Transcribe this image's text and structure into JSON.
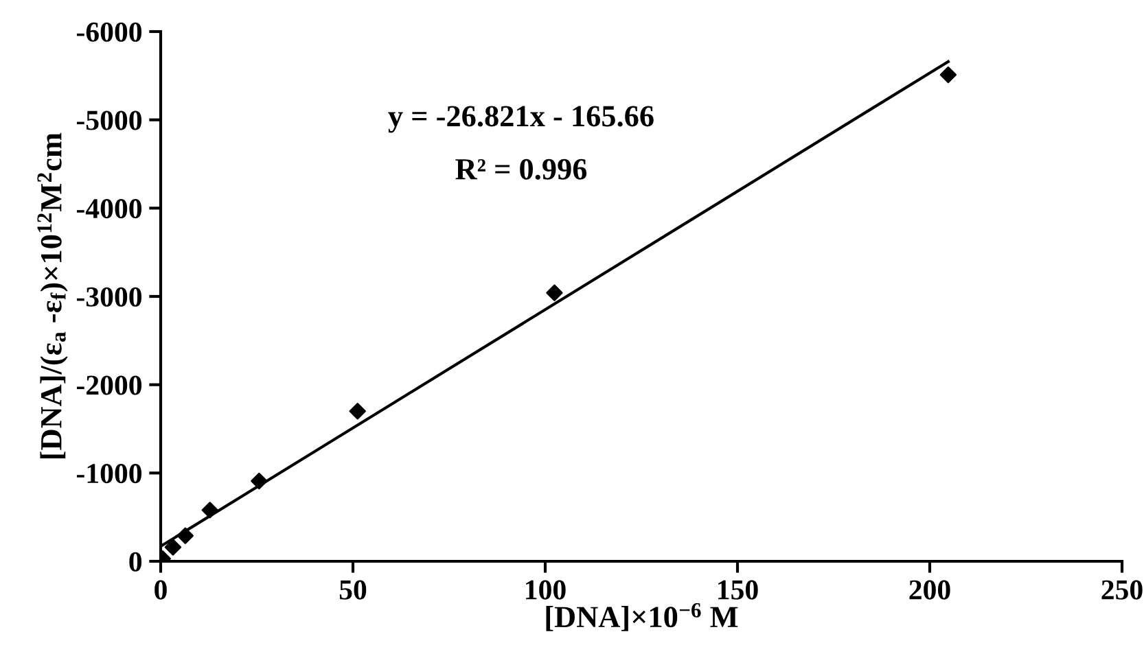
{
  "chart_data": {
    "type": "scatter",
    "xlabel": "[DNA]×10$^{−6}$ M",
    "ylabel": "[DNA]/(ε$_{a}$ -ε$_{f}$)×10$^{12}$M$^{2}$cm",
    "xlim": [
      0,
      250
    ],
    "xticks": [
      0,
      50,
      100,
      150,
      200,
      250
    ],
    "ylim": [
      0,
      -6000
    ],
    "yticks": [
      0,
      -1000,
      -2000,
      -3000,
      -4000,
      -5000,
      -6000
    ],
    "grid": false,
    "legend": false,
    "series": [
      {
        "color": "#000000",
        "marker": "diamond",
        "x": [
          0.5,
          3.2,
          6.4,
          12.8,
          25.6,
          51.2,
          102.4,
          204.8
        ],
        "values": [
          -30,
          -160,
          -290,
          -580,
          -910,
          -1700,
          -3040,
          -5510
        ]
      },
      {
        "type": "line",
        "marker": "none",
        "color": "#000000",
        "x": [
          0,
          204.8
        ],
        "values": [
          -170,
          -5660
        ]
      }
    ],
    "annotations": [
      {
        "text": "y = -26.821x - 165.66"
      },
      {
        "text": "R² = 0.996"
      }
    ]
  }
}
